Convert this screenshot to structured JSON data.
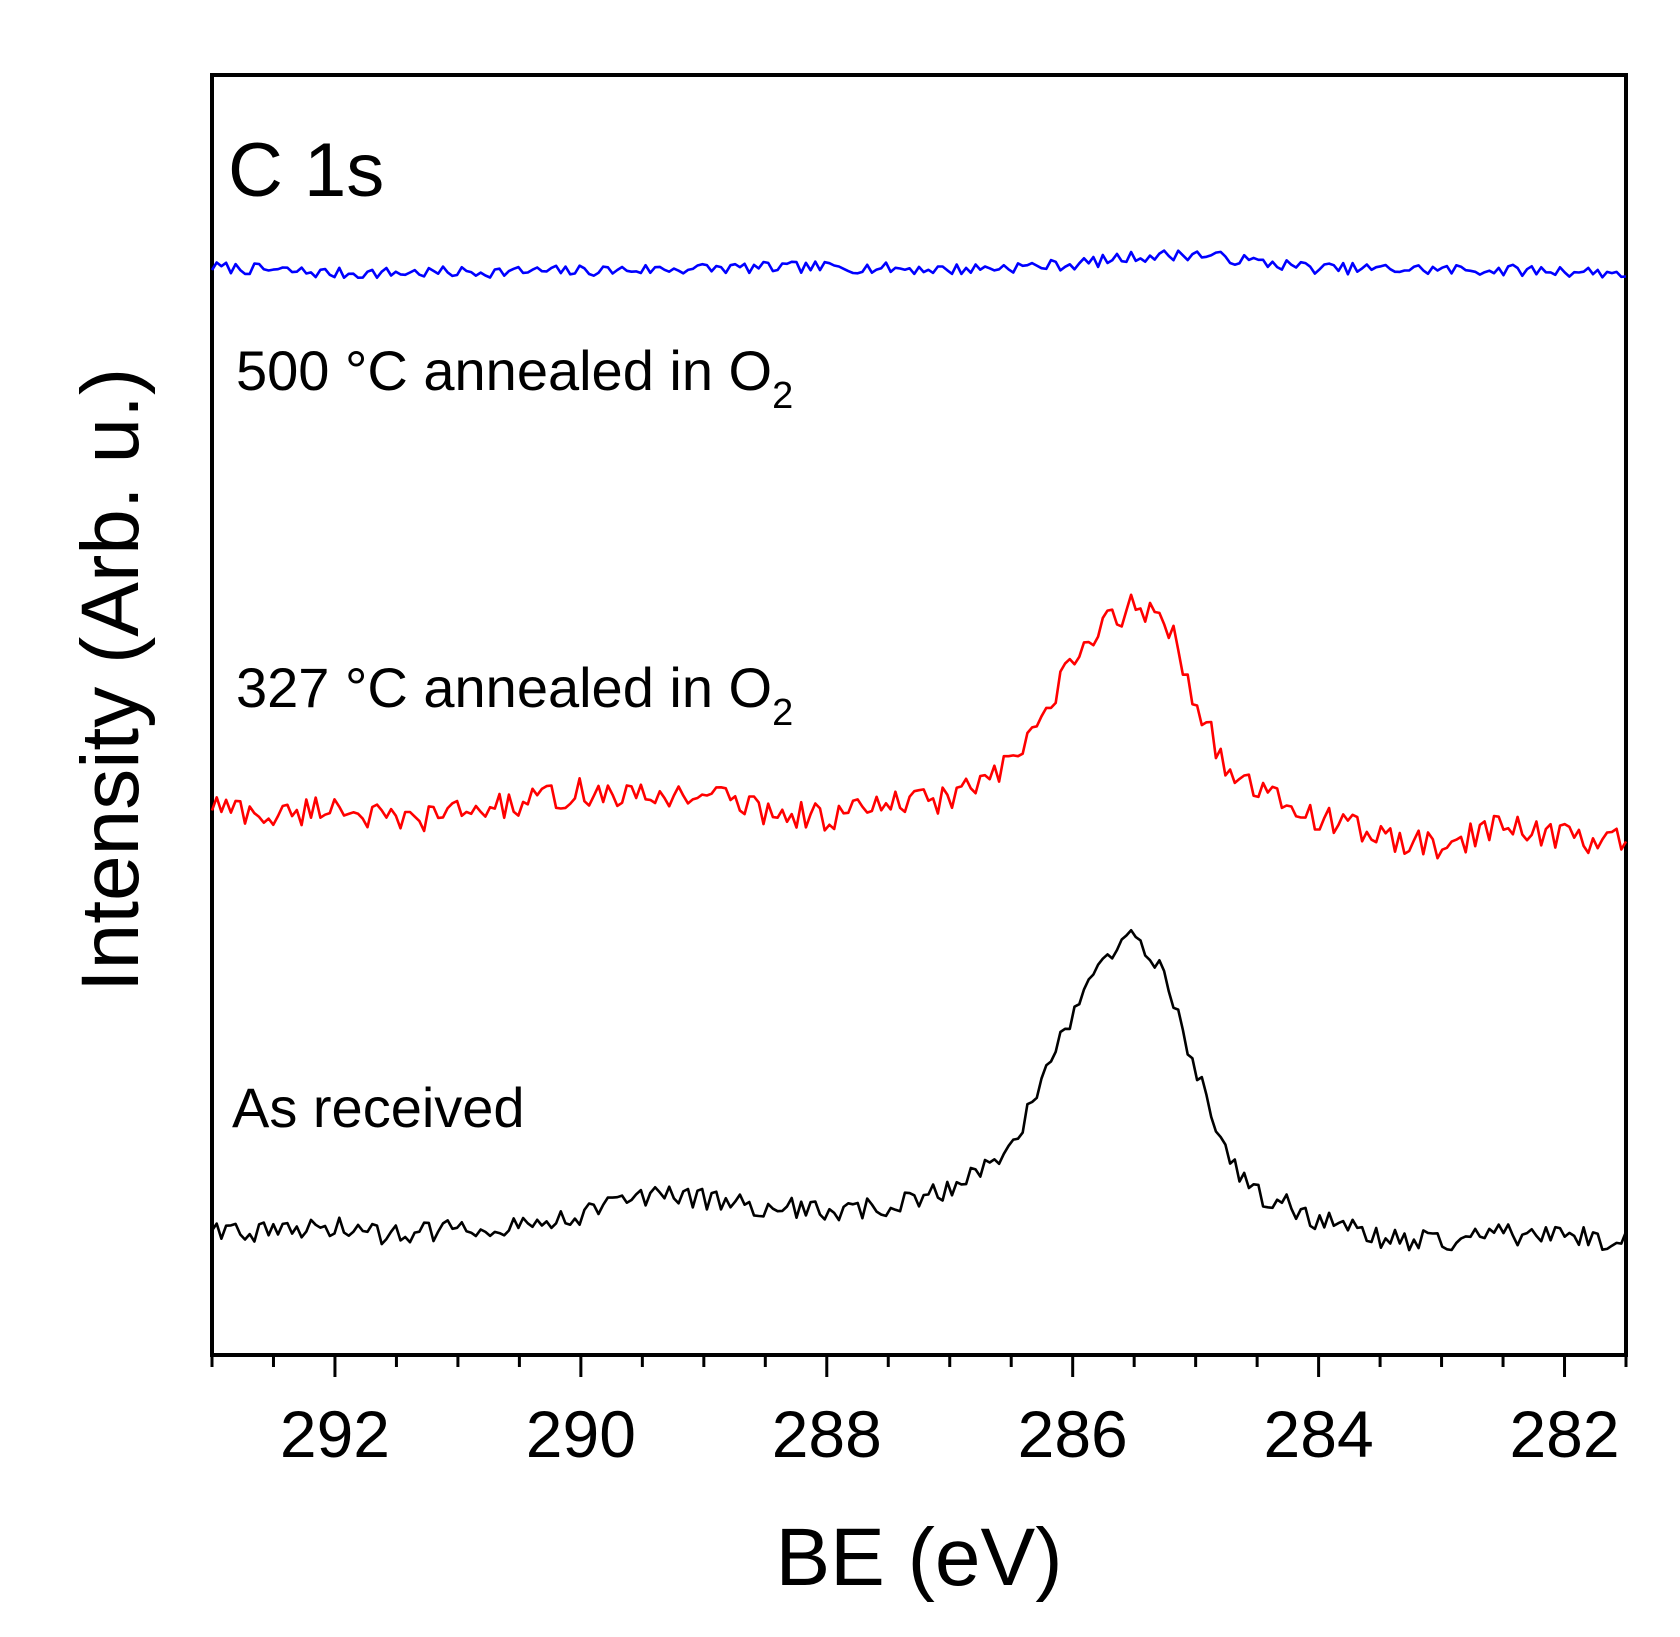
{
  "chart_data": {
    "type": "line",
    "title": "",
    "panel_label": "C 1s",
    "xlabel": "BE (eV)",
    "ylabel": "Intensity (Arb. u.)",
    "xlim": [
      293,
      281.5
    ],
    "x_reversed": true,
    "x_ticks": [
      292,
      290,
      288,
      286,
      284,
      282
    ],
    "x_tick_labels": [
      "292",
      "290",
      "288",
      "286",
      "284",
      "282"
    ],
    "minor_tick_step": 0.5,
    "ylim": [
      0,
      100
    ],
    "y_ticks_shown": false,
    "grid": false,
    "legend": "none",
    "series": [
      {
        "name": "500 °C annealed in O₂",
        "label_main": "500 °C annealed in O",
        "label_sub": "2",
        "color": "#0000ff",
        "x": [
          293,
          292,
          291,
          290,
          289,
          288,
          287,
          286.5,
          286,
          285.5,
          285,
          284.5,
          284,
          283,
          282,
          281.5
        ],
        "y": [
          85,
          84.5,
          84.6,
          84.7,
          84.9,
          85,
          84.8,
          85,
          85.2,
          85.8,
          86,
          85.4,
          84.9,
          84.8,
          84.7,
          84.5
        ]
      },
      {
        "name": "327 °C annealed in O₂",
        "label_main": "327 °C annealed in O",
        "label_sub": "2",
        "color": "#ff0000",
        "x": [
          293,
          292.5,
          292,
          291.5,
          291,
          290.5,
          290,
          289.5,
          289,
          288.5,
          288,
          287.5,
          287,
          286.5,
          286.3,
          286,
          285.7,
          285.5,
          285.2,
          285,
          284.7,
          284.5,
          284,
          283.5,
          283,
          282.5,
          282,
          281.5
        ],
        "y": [
          43,
          42,
          43,
          41.5,
          42.5,
          43,
          44,
          43.5,
          44,
          42.5,
          42,
          43,
          43.5,
          46,
          49,
          54,
          57.5,
          58.5,
          57,
          51,
          45,
          44,
          42,
          40.5,
          39.5,
          41.5,
          40.5,
          40
        ]
      },
      {
        "name": "As received",
        "label_main": "As received",
        "label_sub": "",
        "color": "#000000",
        "x": [
          293,
          292.5,
          292,
          291.5,
          291,
          290.5,
          290,
          289.5,
          289,
          288.5,
          288,
          287.5,
          287,
          286.7,
          286.5,
          286.3,
          286.1,
          285.9,
          285.7,
          285.5,
          285.3,
          285.1,
          284.9,
          284.7,
          284.5,
          284.2,
          284,
          283.5,
          283,
          282.5,
          282,
          281.5
        ],
        "y": [
          10,
          9.5,
          10,
          9.3,
          10,
          10.2,
          11,
          12.5,
          12.2,
          11.6,
          11.2,
          11.5,
          13,
          15,
          16.5,
          20,
          24.5,
          28.5,
          31.5,
          32.5,
          30.5,
          25,
          19.5,
          15,
          12.5,
          11.5,
          10.5,
          9.2,
          8.8,
          9.5,
          9.2,
          9
        ]
      }
    ]
  }
}
